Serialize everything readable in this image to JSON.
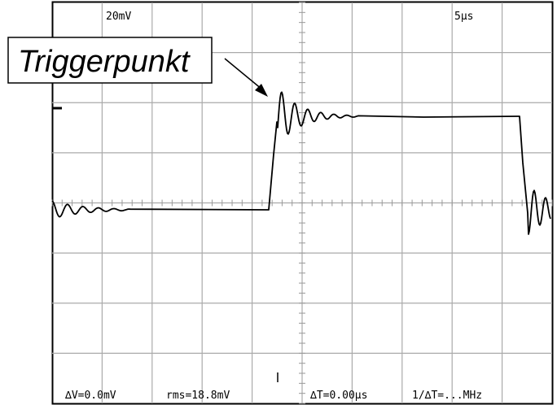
{
  "top_readouts": {
    "volts_per_div": "20mV",
    "time_per_div": "5µs"
  },
  "annotation": {
    "label": "Triggerpunkt"
  },
  "bottom_readouts": {
    "delta_v": "∆V=0.0mV",
    "rms": "rms=18.8mV",
    "delta_t": "∆T=0.00µs",
    "inv_delta_t": "1/∆T=...MHz"
  },
  "colors": {
    "trace": "#000000",
    "grid": "#aaaaaa",
    "frame": "#000000",
    "background": "#ffffff"
  },
  "icons": {
    "trigger_marker": "trigger-marker-icon",
    "arrow": "arrow-icon"
  }
}
